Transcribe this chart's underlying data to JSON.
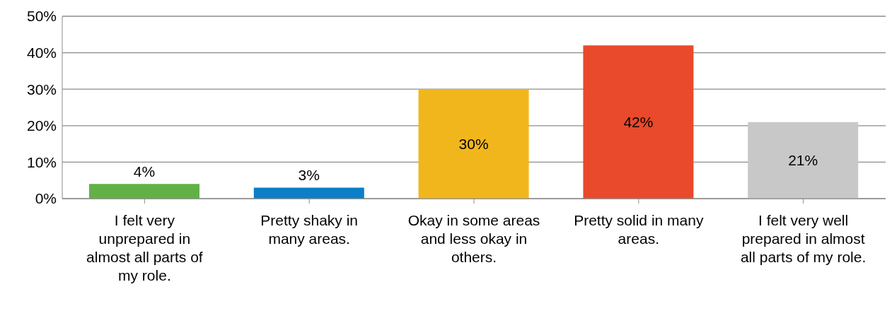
{
  "chart_data": {
    "type": "bar",
    "categories": [
      "I felt very unprepared in almost all parts of my role.",
      "Pretty shaky in many areas.",
      "Okay in some areas and less okay in others.",
      "Pretty solid in many areas.",
      "I felt very well prepared in almost all parts of my role."
    ],
    "values": [
      4,
      3,
      30,
      42,
      21
    ],
    "colors": [
      "#62b146",
      "#0a7fc7",
      "#f2b61d",
      "#e84a2b",
      "#c8c8c8"
    ],
    "ylim": [
      0,
      50
    ],
    "yticks": [
      {
        "value": 0,
        "label": "0%"
      },
      {
        "value": 10,
        "label": "10%"
      },
      {
        "value": 20,
        "label": "20%"
      },
      {
        "value": 30,
        "label": "30%"
      },
      {
        "value": 40,
        "label": "40%"
      },
      {
        "value": 50,
        "label": "50%"
      }
    ],
    "value_labels": [
      "4%",
      "3%",
      "30%",
      "42%",
      "21%"
    ],
    "grid": "y",
    "legend": false
  }
}
